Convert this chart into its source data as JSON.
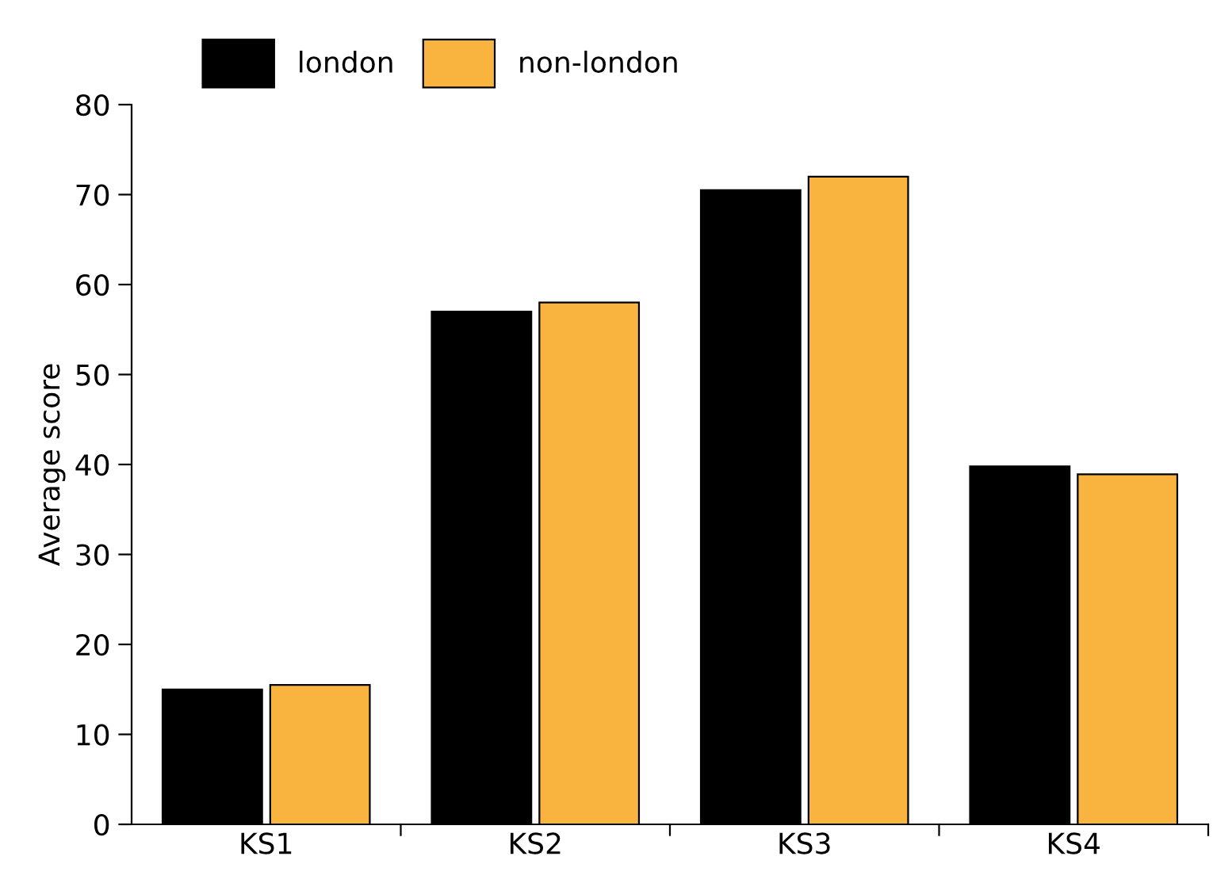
{
  "chart_data": {
    "type": "bar",
    "ylabel": "Average score",
    "categories": [
      "KS1",
      "KS2",
      "KS3",
      "KS4"
    ],
    "series": [
      {
        "name": "london",
        "color": "#000000",
        "values": [
          15,
          57,
          70.5,
          39.8
        ]
      },
      {
        "name": "non-london",
        "color": "#f9b43f",
        "values": [
          15.5,
          58,
          72,
          38.9
        ]
      }
    ],
    "ylim": [
      0,
      80
    ],
    "yticks": [
      0,
      10,
      20,
      30,
      40,
      50,
      60,
      70,
      80
    ],
    "grid": false,
    "legend": "top left"
  }
}
